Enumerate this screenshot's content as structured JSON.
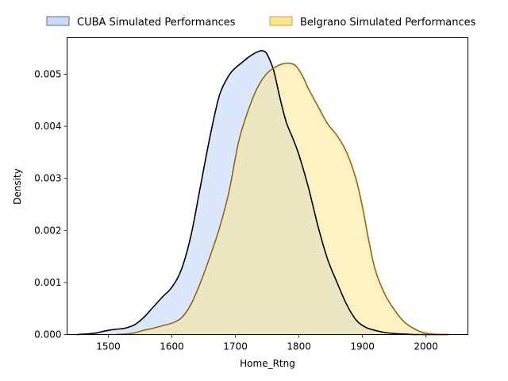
{
  "chart_data": {
    "type": "area",
    "kind": "kde",
    "xlabel": "Home_Rtng",
    "ylabel": "Density",
    "xlim": [
      1435,
      2066
    ],
    "ylim": [
      0,
      0.0057
    ],
    "xticks": [
      1500,
      1600,
      1700,
      1800,
      1900,
      2000
    ],
    "yticks": [
      0.0,
      0.001,
      0.002,
      0.003,
      0.004,
      0.005
    ],
    "ytick_labels": [
      "0.000",
      "0.001",
      "0.002",
      "0.003",
      "0.004",
      "0.005"
    ],
    "legend_position": "top-center, outside plot",
    "grid": false,
    "series": [
      {
        "name": "CUBA Simulated Performances",
        "fill": "#c8dcfa",
        "line": "#000000",
        "x": [
          1450,
          1465,
          1480,
          1495,
          1510,
          1525,
          1540,
          1555,
          1570,
          1585,
          1600,
          1615,
          1630,
          1645,
          1660,
          1675,
          1690,
          1700,
          1710,
          1720,
          1730,
          1740,
          1745,
          1750,
          1760,
          1770,
          1780,
          1790,
          1800,
          1815,
          1830,
          1845,
          1860,
          1875,
          1890,
          1905,
          1920,
          1935,
          1950,
          1965,
          1980,
          1995,
          2010,
          2025,
          2036
        ],
        "y": [
          0.0,
          1e-05,
          3e-05,
          7e-05,
          0.0001,
          0.00012,
          0.00018,
          0.00032,
          0.00052,
          0.00072,
          0.00091,
          0.00125,
          0.0019,
          0.00285,
          0.0038,
          0.0046,
          0.00498,
          0.00512,
          0.00522,
          0.00532,
          0.0054,
          0.00545,
          0.00544,
          0.00538,
          0.00508,
          0.00455,
          0.00408,
          0.00378,
          0.00345,
          0.00282,
          0.00208,
          0.00145,
          0.001,
          0.00058,
          0.00028,
          0.00014,
          8e-05,
          4e-05,
          2e-05,
          1e-05,
          0.0,
          0.0,
          0.0,
          0.0,
          0.0
        ]
      },
      {
        "name": "Belgrano Simulated Performances",
        "fill": "#fde68a",
        "line": "#9a6608",
        "x": [
          1512,
          1525,
          1540,
          1555,
          1570,
          1585,
          1600,
          1615,
          1630,
          1645,
          1660,
          1675,
          1690,
          1705,
          1720,
          1735,
          1750,
          1765,
          1775,
          1785,
          1795,
          1805,
          1815,
          1830,
          1845,
          1860,
          1875,
          1890,
          1900,
          1910,
          1920,
          1935,
          1950,
          1965,
          1980,
          1995,
          2010,
          2025,
          2036
        ],
        "y": [
          0.0,
          1e-05,
          3e-05,
          8e-05,
          0.00012,
          0.00017,
          0.00022,
          0.00032,
          0.00058,
          0.001,
          0.0015,
          0.00205,
          0.00275,
          0.0037,
          0.0043,
          0.00475,
          0.00502,
          0.00515,
          0.0052,
          0.00521,
          0.00516,
          0.00498,
          0.00472,
          0.00438,
          0.00405,
          0.00382,
          0.0035,
          0.00298,
          0.00245,
          0.0018,
          0.00125,
          0.00078,
          0.00048,
          0.00025,
          0.00012,
          4e-05,
          1e-05,
          0.0,
          0.0
        ]
      }
    ]
  }
}
